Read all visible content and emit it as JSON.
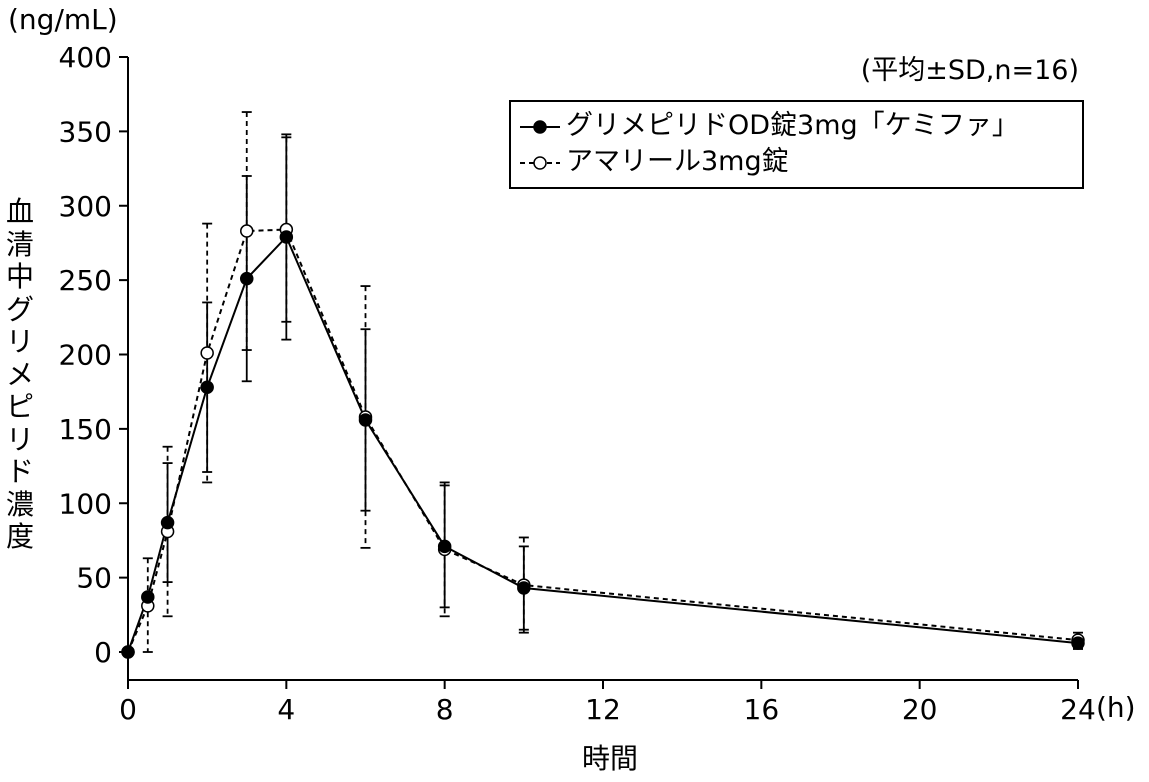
{
  "chart_data": {
    "type": "line",
    "title": "",
    "xlabel": "時間",
    "xunit": "(h)",
    "ylabel": "血清中グリメピリド濃度",
    "yunit": "(ng/mL)",
    "note": "(平均±SD,n=16)",
    "xlim": [
      0,
      24
    ],
    "ylim": [
      0,
      400
    ],
    "xticks": [
      0,
      4,
      8,
      12,
      16,
      20,
      24
    ],
    "yticks": [
      0,
      50,
      100,
      150,
      200,
      250,
      300,
      350,
      400
    ],
    "legend_position": "top-right",
    "grid": false,
    "series": [
      {
        "name": "グリメピリドOD錠3mg「ケミファ」",
        "marker": "filled-circle",
        "line": "solid",
        "x": [
          0,
          0.5,
          1,
          2,
          3,
          4,
          6,
          8,
          10,
          24
        ],
        "y": [
          0,
          37,
          87,
          178,
          251,
          279,
          156,
          71,
          43,
          6
        ],
        "sd": [
          0,
          0,
          40,
          57,
          69,
          69,
          61,
          41,
          28,
          4
        ]
      },
      {
        "name": "アマリール3mg錠",
        "marker": "open-circle",
        "line": "dashed",
        "x": [
          0,
          0.5,
          1,
          2,
          3,
          4,
          6,
          8,
          10,
          24
        ],
        "y": [
          0,
          31,
          81,
          201,
          283,
          284,
          158,
          69,
          45,
          8
        ],
        "sd": [
          0,
          32,
          57,
          87,
          80,
          62,
          88,
          45,
          32,
          5
        ]
      }
    ]
  }
}
